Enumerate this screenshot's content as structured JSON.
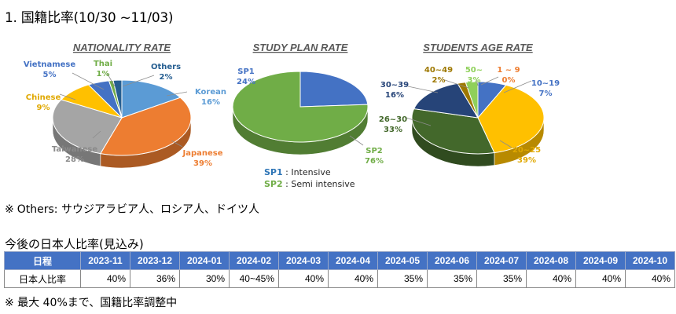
{
  "heading": "1. 国籍比率(10/30 ~11/03)",
  "notes": {
    "mark": "※",
    "others_note": "Others: サウジアラビア人、ロシア人、ドイツ人",
    "max_note": "※ 最大 40%まで、国籍比率調整中"
  },
  "chart_data": [
    {
      "type": "pie",
      "title": "NATIONALITY RATE",
      "slices": [
        {
          "label": "Korean",
          "value": 16,
          "display": "16%",
          "color": "#5b9bd5"
        },
        {
          "label": "Japanese",
          "value": 39,
          "display": "39%",
          "color": "#ed7d31"
        },
        {
          "label": "Taiwanese",
          "value": 28,
          "display": "28%",
          "color": "#a5a5a5"
        },
        {
          "label": "Chinese",
          "value": 9,
          "display": "9%",
          "color": "#ffc000"
        },
        {
          "label": "Vietnamese",
          "value": 5,
          "display": "5%",
          "color": "#4472c4"
        },
        {
          "label": "Thai",
          "value": 1,
          "display": "1%",
          "color": "#70ad47"
        },
        {
          "label": "Others",
          "value": 2,
          "display": "2%",
          "color": "#255e91"
        }
      ]
    },
    {
      "type": "pie",
      "title": "STUDY PLAN RATE",
      "slices": [
        {
          "label": "SP1",
          "value": 24,
          "display": "24%",
          "color": "#4472c4"
        },
        {
          "label": "SP2",
          "value": 76,
          "display": "76%",
          "color": "#70ad47"
        }
      ],
      "legend": [
        {
          "key": "SP1",
          "text": ": Intensive",
          "color": "#2e75b6"
        },
        {
          "key": "SP2",
          "text": ": Semi intensive",
          "color": "#70ad47"
        }
      ]
    },
    {
      "type": "pie",
      "title": "STUDENTS AGE RATE",
      "slices": [
        {
          "label": "10~19",
          "value": 7,
          "display": "7%",
          "color": "#4472c4"
        },
        {
          "label": "20~25",
          "value": 39,
          "display": "39%",
          "color": "#ffc000"
        },
        {
          "label": "26~30",
          "value": 33,
          "display": "33%",
          "color": "#43682b"
        },
        {
          "label": "30~39",
          "value": 16,
          "display": "16%",
          "color": "#264478"
        },
        {
          "label": "40~49",
          "value": 2,
          "display": "2%",
          "color": "#9e7800"
        },
        {
          "label": "50~",
          "value": 3,
          "display": "3%",
          "color": "#8fd05a"
        },
        {
          "label": "1 ~ 9",
          "value": 0,
          "display": "0%",
          "color": "#ed7d31"
        }
      ]
    }
  ],
  "forecast": {
    "title": "今後の日本人比率(見込み)",
    "header_label": "日程",
    "row_label": "日本人比率",
    "months": [
      "2023-11",
      "2023-12",
      "2024-01",
      "2024-02",
      "2024-03",
      "2024-04",
      "2024-05",
      "2024-06",
      "2024-07",
      "2024-08",
      "2024-09",
      "2024-10"
    ],
    "rates": [
      "40%",
      "36%",
      "30%",
      "40~45%",
      "40%",
      "40%",
      "35%",
      "35%",
      "35%",
      "40%",
      "40%",
      "40%"
    ],
    "header_color": "#4472c4"
  }
}
